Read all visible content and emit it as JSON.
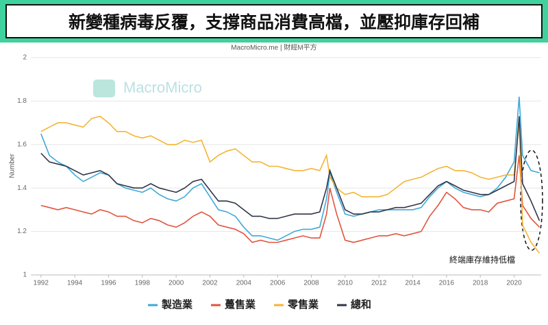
{
  "chart_data": {
    "type": "line",
    "title": "新變種病毒反覆，支撐商品消費高檔，並壓抑庫存回補",
    "subtitle": "MacroMicro.me | 財經M平方",
    "watermark": "MacroMicro",
    "y_label": "Number",
    "annotation": "終端庫存維持低檔",
    "x": [
      1992,
      1992.5,
      1993,
      1993.5,
      1994,
      1994.5,
      1995,
      1995.5,
      1996,
      1996.5,
      1997,
      1997.5,
      1998,
      1998.5,
      1999,
      1999.5,
      2000,
      2000.5,
      2001,
      2001.5,
      2002,
      2002.5,
      2003,
      2003.5,
      2004,
      2004.5,
      2005,
      2005.5,
      2006,
      2006.5,
      2007,
      2007.5,
      2008,
      2008.5,
      2008.9,
      2009.1,
      2009.5,
      2010,
      2010.5,
      2011,
      2011.5,
      2012,
      2012.5,
      2013,
      2013.5,
      2014,
      2014.5,
      2015,
      2015.5,
      2016,
      2016.5,
      2017,
      2017.5,
      2018,
      2018.5,
      2019,
      2019.5,
      2020,
      2020.3,
      2020.5,
      2021,
      2021.5
    ],
    "series": [
      {
        "name": "製造業",
        "color": "#3ea8d8",
        "values": [
          1.65,
          1.55,
          1.52,
          1.5,
          1.46,
          1.43,
          1.45,
          1.47,
          1.46,
          1.42,
          1.4,
          1.39,
          1.38,
          1.4,
          1.37,
          1.35,
          1.34,
          1.36,
          1.4,
          1.42,
          1.36,
          1.3,
          1.29,
          1.27,
          1.22,
          1.18,
          1.18,
          1.17,
          1.16,
          1.18,
          1.2,
          1.21,
          1.21,
          1.22,
          1.35,
          1.47,
          1.38,
          1.28,
          1.27,
          1.28,
          1.29,
          1.3,
          1.3,
          1.3,
          1.3,
          1.3,
          1.31,
          1.36,
          1.4,
          1.43,
          1.4,
          1.38,
          1.37,
          1.36,
          1.37,
          1.4,
          1.45,
          1.52,
          1.82,
          1.55,
          1.48,
          1.47
        ]
      },
      {
        "name": "躉售業",
        "color": "#e0533c",
        "values": [
          1.32,
          1.31,
          1.3,
          1.31,
          1.3,
          1.29,
          1.28,
          1.3,
          1.29,
          1.27,
          1.27,
          1.25,
          1.24,
          1.26,
          1.25,
          1.23,
          1.22,
          1.24,
          1.27,
          1.29,
          1.27,
          1.23,
          1.22,
          1.21,
          1.19,
          1.15,
          1.16,
          1.15,
          1.15,
          1.16,
          1.17,
          1.18,
          1.17,
          1.17,
          1.28,
          1.4,
          1.28,
          1.16,
          1.15,
          1.16,
          1.17,
          1.18,
          1.18,
          1.19,
          1.18,
          1.19,
          1.2,
          1.27,
          1.32,
          1.38,
          1.35,
          1.31,
          1.3,
          1.3,
          1.29,
          1.33,
          1.34,
          1.35,
          1.55,
          1.32,
          1.26,
          1.22
        ]
      },
      {
        "name": "零售業",
        "color": "#f5b335",
        "values": [
          1.66,
          1.68,
          1.7,
          1.7,
          1.69,
          1.68,
          1.72,
          1.73,
          1.7,
          1.66,
          1.66,
          1.64,
          1.63,
          1.64,
          1.62,
          1.6,
          1.6,
          1.62,
          1.61,
          1.62,
          1.52,
          1.55,
          1.57,
          1.58,
          1.55,
          1.52,
          1.52,
          1.5,
          1.5,
          1.49,
          1.48,
          1.48,
          1.49,
          1.48,
          1.55,
          1.45,
          1.4,
          1.37,
          1.38,
          1.36,
          1.36,
          1.36,
          1.37,
          1.4,
          1.43,
          1.44,
          1.45,
          1.47,
          1.49,
          1.5,
          1.48,
          1.48,
          1.47,
          1.45,
          1.44,
          1.45,
          1.46,
          1.46,
          1.7,
          1.23,
          1.15,
          1.1
        ]
      },
      {
        "name": "總和",
        "color": "#2f3447",
        "values": [
          1.56,
          1.52,
          1.51,
          1.5,
          1.48,
          1.46,
          1.47,
          1.48,
          1.46,
          1.42,
          1.41,
          1.4,
          1.4,
          1.42,
          1.4,
          1.39,
          1.38,
          1.4,
          1.43,
          1.44,
          1.39,
          1.34,
          1.34,
          1.33,
          1.3,
          1.27,
          1.27,
          1.26,
          1.26,
          1.27,
          1.28,
          1.28,
          1.28,
          1.29,
          1.4,
          1.48,
          1.4,
          1.3,
          1.28,
          1.28,
          1.29,
          1.29,
          1.3,
          1.31,
          1.31,
          1.32,
          1.33,
          1.37,
          1.41,
          1.43,
          1.41,
          1.39,
          1.38,
          1.37,
          1.37,
          1.39,
          1.41,
          1.43,
          1.73,
          1.42,
          1.34,
          1.25
        ]
      }
    ],
    "xlim": [
      1991.4,
      2021.6
    ],
    "xticks": [
      1992,
      1994,
      1996,
      1998,
      2000,
      2002,
      2004,
      2006,
      2008,
      2010,
      2012,
      2014,
      2016,
      2018,
      2020
    ],
    "ylim": [
      1,
      2
    ],
    "yticks": [
      1,
      1.2,
      1.4,
      1.6,
      1.8,
      2
    ],
    "grid": true
  }
}
